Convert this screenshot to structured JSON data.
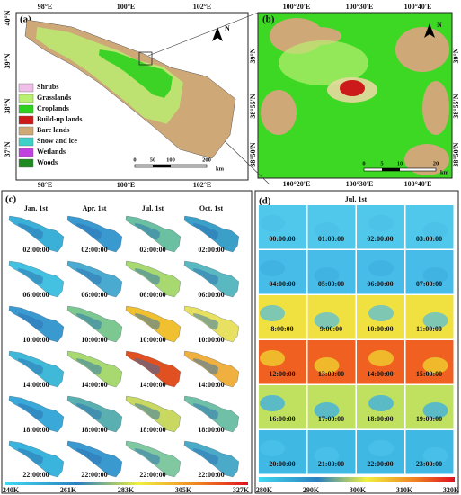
{
  "panel_a": {
    "label": "(a)",
    "lon_labels": [
      "98°E",
      "100°E",
      "102°E"
    ],
    "lat_labels": [
      "40°N",
      "39°N",
      "38°N",
      "37°N"
    ],
    "north": "N",
    "legend": [
      {
        "name": "Shrubs",
        "color": "#f0bfe8"
      },
      {
        "name": "Grasslands",
        "color": "#b8f070"
      },
      {
        "name": "Croplands",
        "color": "#2ed21e"
      },
      {
        "name": "Build-up lands",
        "color": "#cc1a1a"
      },
      {
        "name": "Bare lands",
        "color": "#cfa878"
      },
      {
        "name": "Snow and ice",
        "color": "#3cd0c8"
      },
      {
        "name": "Wetlands",
        "color": "#c040e0"
      },
      {
        "name": "Woods",
        "color": "#1f8a1f"
      }
    ],
    "scale": [
      "0",
      "50",
      "100",
      "200"
    ],
    "scale_unit": "km"
  },
  "panel_b": {
    "label": "(b)",
    "lon_labels": [
      "100°20'E",
      "100°30'E",
      "100°40'E"
    ],
    "lat_labels": [
      "39°N",
      "38°55'N",
      "38°50'N"
    ],
    "north": "N",
    "scale": [
      "0",
      "5",
      "10",
      "20"
    ],
    "scale_unit": "km"
  },
  "panel_c": {
    "label": "(c)",
    "columns": [
      "Jan. 1st",
      "Apr. 1st",
      "Jul. 1st",
      "Oct. 1st"
    ],
    "times": [
      "02:00:00",
      "06:00:00",
      "10:00:00",
      "14:00:00",
      "18:00:00",
      "22:00:00"
    ],
    "colorbar": [
      "240K",
      "261K",
      "283K",
      "305K",
      "327K"
    ]
  },
  "panel_d": {
    "label": "(d)",
    "title": "Jul. 1st",
    "times": [
      "00:00:00",
      "01:00:00",
      "02:00:00",
      "03:00:00",
      "04:00:00",
      "05:00:00",
      "06:00:00",
      "07:00:00",
      "8:00:00",
      "9:00:00",
      "10:00:00",
      "11:00:00",
      "12:00:00",
      "13:00:00",
      "14:00:00",
      "15:00:00",
      "16:00:00",
      "17:00:00",
      "18:00:00",
      "19:00:00",
      "20:00:00",
      "21:00:00",
      "22:00:00",
      "23:00:00"
    ],
    "colorbar": [
      "280K",
      "290K",
      "300K",
      "310K",
      "320K"
    ]
  }
}
